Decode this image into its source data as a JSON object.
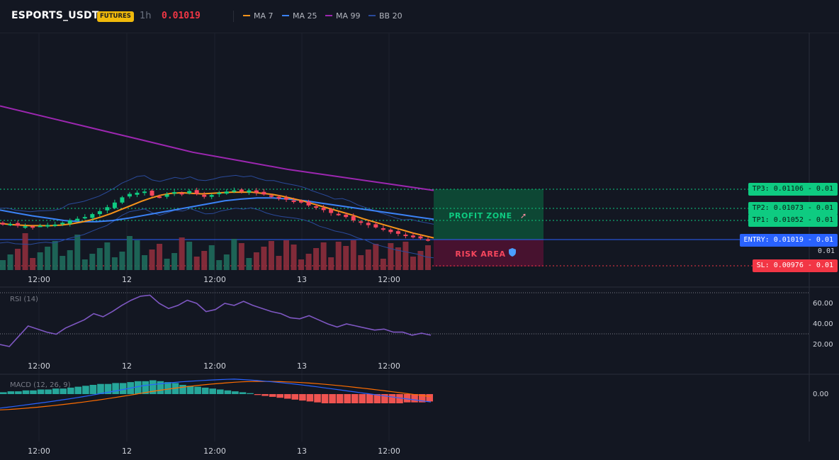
{
  "header": {
    "symbol": "ESPORTS_USDT",
    "badge": "FUTURES",
    "timeframe": "1h",
    "last_price": "0.01019"
  },
  "legend": [
    {
      "label": "MA 7",
      "color": "#f7931a"
    },
    {
      "label": "MA 25",
      "color": "#3b82f6"
    },
    {
      "label": "MA 99",
      "color": "#9c27b0"
    },
    {
      "label": "BB 20",
      "color": "#1e3a8a"
    }
  ],
  "levels": {
    "tp3": "TP3: 0.01106",
    "tp2": "TP2: 0.01073",
    "tp1": "TP1: 0.01052",
    "entry": "ENTRY: 0.01019",
    "sl": "SL: 0.00976",
    "tp3_tick": "0.01",
    "tp2_tick": "0.01",
    "tp1_tick": "0.01",
    "entry_tick": "0.01",
    "sl_tick": "0.01",
    "free_tick": "0.01"
  },
  "zones": {
    "profit": "PROFIT ZONE",
    "risk": "RISK AREA"
  },
  "colors": {
    "up": "#26a69a",
    "up_bright": "#0ecb81",
    "down": "#f6465d",
    "profit_zone": "#0d4a36",
    "risk_zone": "#4a1230",
    "entry": "#2962ff",
    "sl": "#f23645",
    "tp": "#0ecb81",
    "rsi": "#7e57c2",
    "macd_line": "#2962ff",
    "signal_line": "#ff6d00"
  },
  "chart_data": [
    {
      "type": "candlestick",
      "title": "ESPORTS_USDT",
      "x_ticks": [
        "12:00",
        "12",
        "12:00",
        "13",
        "12:00"
      ],
      "y_ticks": [
        "0.01",
        "0.01",
        "0.01",
        "0.01",
        "0.01",
        "0.01"
      ],
      "close_approx": [
        0.01045,
        0.01046,
        0.01043,
        0.01042,
        0.01041,
        0.01043,
        0.01044,
        0.01045,
        0.01048,
        0.01052,
        0.01055,
        0.01058,
        0.01063,
        0.01068,
        0.01075,
        0.01083,
        0.01092,
        0.01098,
        0.011,
        0.01102,
        0.01095,
        0.01093,
        0.01097,
        0.01101,
        0.01099,
        0.01103,
        0.01098,
        0.01093,
        0.01096,
        0.011,
        0.01102,
        0.01104,
        0.01102,
        0.01104,
        0.011,
        0.01097,
        0.01093,
        0.0109,
        0.01088,
        0.01086,
        0.01083,
        0.01078,
        0.01074,
        0.0107,
        0.01065,
        0.01062,
        0.01058,
        0.01052,
        0.01048,
        0.01044,
        0.0104,
        0.01036,
        0.01032,
        0.01029,
        0.01026,
        0.01023,
        0.01021,
        0.01019
      ],
      "series": [
        {
          "name": "MA 7",
          "values": [
            0.01047,
            0.01045,
            0.01044,
            0.01043,
            0.01043,
            0.01043,
            0.01044,
            0.01046,
            0.01049,
            0.01053,
            0.01058,
            0.01064,
            0.01071,
            0.01078,
            0.01085,
            0.01091,
            0.01096,
            0.01099,
            0.011,
            0.01099,
            0.01098,
            0.01099,
            0.011,
            0.01101,
            0.01101,
            0.01101,
            0.01099,
            0.01097,
            0.01094,
            0.0109,
            0.01086,
            0.01081,
            0.01076,
            0.01071,
            0.01066,
            0.01061,
            0.01055,
            0.0105,
            0.01045,
            0.0104,
            0.01035,
            0.0103,
            0.01026,
            0.01022
          ]
        },
        {
          "name": "MA 25",
          "values": [
            0.0107,
            0.01065,
            0.0106,
            0.01056,
            0.01052,
            0.0105,
            0.0105,
            0.01052,
            0.01056,
            0.01061,
            0.01066,
            0.01071,
            0.01076,
            0.01081,
            0.01086,
            0.01089,
            0.01091,
            0.01091,
            0.01089,
            0.01086,
            0.01082,
            0.01078,
            0.01074,
            0.0107,
            0.01066,
            0.01062,
            0.01058,
            0.01054
          ]
        },
        {
          "name": "MA 99",
          "values": [
            0.0125,
            0.0123,
            0.0121,
            0.0119,
            0.0117,
            0.01155,
            0.0114,
            0.01128,
            0.01116,
            0.01104
          ]
        }
      ]
    },
    {
      "type": "line",
      "title": "RSI (14)",
      "y_ticks": [
        "60.00",
        "40.00",
        "20.00"
      ],
      "ylim": [
        10,
        80
      ],
      "x_ticks": [
        "12:00",
        "12",
        "12:00",
        "13",
        "12:00"
      ],
      "values": [
        20,
        18,
        28,
        38,
        35,
        32,
        30,
        36,
        40,
        44,
        50,
        47,
        52,
        58,
        63,
        67,
        68,
        60,
        55,
        58,
        63,
        60,
        52,
        54,
        60,
        58,
        62,
        58,
        55,
        52,
        50,
        46,
        45,
        48,
        44,
        40,
        37,
        40,
        38,
        36,
        34,
        35,
        32,
        32,
        29,
        31,
        29
      ]
    },
    {
      "type": "bar",
      "title": "MACD (12, 26, 9)",
      "y_ticks": [
        "0.00"
      ],
      "x_ticks": [
        "12:00",
        "12",
        "12:00",
        "13",
        "12:00"
      ],
      "histogram": [
        0.02,
        0.03,
        0.03,
        0.04,
        0.04,
        0.05,
        0.05,
        0.06,
        0.06,
        0.07,
        0.08,
        0.09,
        0.1,
        0.11,
        0.11,
        0.12,
        0.12,
        0.13,
        0.14,
        0.14,
        0.15,
        0.14,
        0.13,
        0.12,
        0.1,
        0.09,
        0.08,
        0.07,
        0.06,
        0.05,
        0.04,
        0.03,
        0.02,
        0.01,
        -0.01,
        -0.02,
        -0.03,
        -0.04,
        -0.05,
        -0.06,
        -0.07,
        -0.08,
        -0.09,
        -0.1,
        -0.1,
        -0.1,
        -0.1,
        -0.1,
        -0.1,
        -0.1,
        -0.1,
        -0.1,
        -0.1,
        -0.1,
        -0.09,
        -0.09,
        -0.09,
        -0.08
      ]
    }
  ]
}
